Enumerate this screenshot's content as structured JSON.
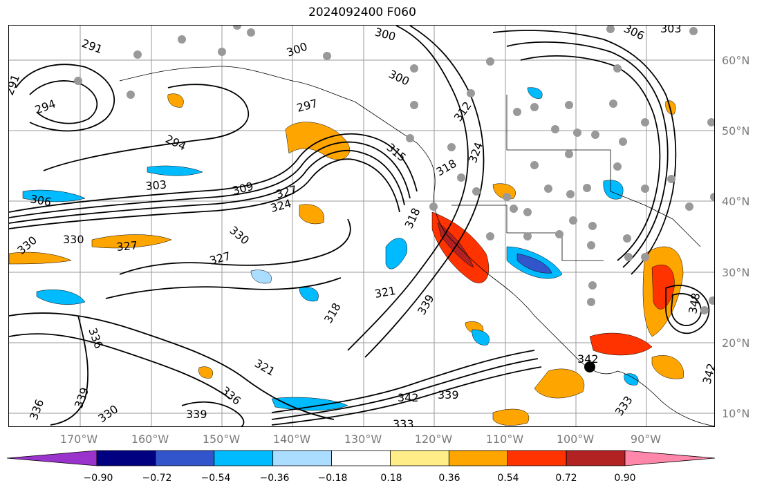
{
  "title": "2024092400 F060",
  "lat_labels": [
    "60°N",
    "50°N",
    "40°N",
    "30°N",
    "20°N",
    "10°N"
  ],
  "lon_labels": [
    "170°W",
    "160°W",
    "150°W",
    "140°W",
    "130°W",
    "120°W",
    "110°W",
    "100°W",
    "90°W"
  ],
  "colorbar": {
    "tick_labels": [
      "−0.90",
      "−0.72",
      "−0.54",
      "−0.36",
      "−0.18",
      "0.18",
      "0.36",
      "0.54",
      "0.72",
      "0.90"
    ],
    "colors": [
      "#9933cc",
      "#000080",
      "#3355cc",
      "#00bbff",
      "#aaddff",
      "#ffffff",
      "#ffee88",
      "#ffa500",
      "#ff3300",
      "#b22222",
      "#ff88aa"
    ]
  },
  "contour_labels": [
    "291",
    "291",
    "294",
    "294",
    "297",
    "300",
    "300",
    "300",
    "303",
    "303",
    "306",
    "306",
    "309",
    "312",
    "315",
    "318",
    "318",
    "318",
    "321",
    "321",
    "324",
    "324",
    "327",
    "327",
    "327",
    "330",
    "330",
    "330",
    "330",
    "333",
    "333",
    "336",
    "336",
    "336",
    "339",
    "339",
    "339",
    "339",
    "342",
    "342",
    "342",
    "348"
  ],
  "map_features": {
    "contour_color": "#000000",
    "gridlines": true,
    "station_marker_color": "#999999",
    "field": "contours with shaded anomaly"
  }
}
